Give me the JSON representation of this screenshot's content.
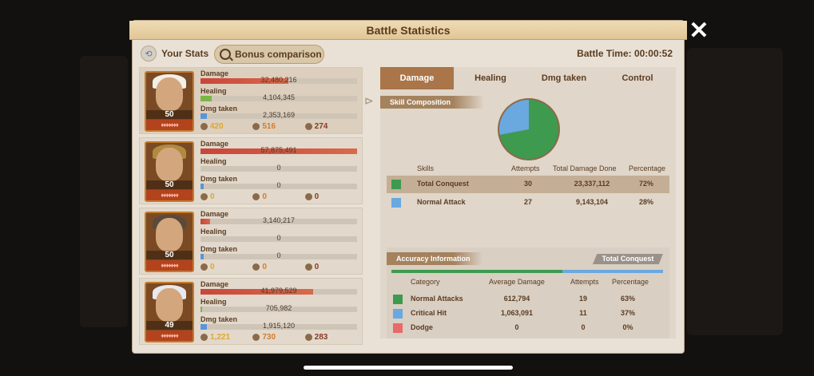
{
  "window": {
    "title": "Battle Statistics"
  },
  "header": {
    "your_stats": "Your Stats",
    "bonus_comparison": "Bonus comparison",
    "battle_time": "Battle Time: 00:00:52"
  },
  "stat_labels": {
    "damage": "Damage",
    "healing": "Healing",
    "dmg_taken": "Dmg taken"
  },
  "heroes": [
    {
      "level": "50",
      "damage": "32,480,216",
      "damage_pct": 0.56,
      "healing": "4,104,345",
      "healing_pct": 0.07,
      "dmg_taken": "2,353,169",
      "dmg_taken_pct": 0.04,
      "stat1": "420",
      "stat2": "516",
      "stat3": "274",
      "hat_color": "#f2efe8"
    },
    {
      "level": "50",
      "damage": "57,875,491",
      "damage_pct": 1.0,
      "healing": "0",
      "healing_pct": 0,
      "dmg_taken": "0",
      "dmg_taken_pct": 0.02,
      "stat1": "0",
      "stat2": "0",
      "stat3": "0",
      "hat_color": "#b08a40"
    },
    {
      "level": "50",
      "damage": "3,140,217",
      "damage_pct": 0.06,
      "healing": "0",
      "healing_pct": 0,
      "dmg_taken": "0",
      "dmg_taken_pct": 0.02,
      "stat1": "0",
      "stat2": "0",
      "stat3": "0",
      "hat_color": "#5a4a3a"
    },
    {
      "level": "49",
      "damage": "41,979,529",
      "damage_pct": 0.72,
      "healing": "705,982",
      "healing_pct": 0.01,
      "dmg_taken": "1,915,120",
      "dmg_taken_pct": 0.04,
      "stat1": "1,221",
      "stat2": "730",
      "stat3": "283",
      "hat_color": "#e8e8ee"
    }
  ],
  "tabs": [
    "Damage",
    "Healing",
    "Dmg taken",
    "Control"
  ],
  "skill_composition": {
    "label": "Skill Composition",
    "headers": {
      "skills": "Skills",
      "attempts": "Attempts",
      "total": "Total Damage Done",
      "pct": "Percentage"
    },
    "rows": [
      {
        "name": "Total Conquest",
        "attempts": "30",
        "total": "23,337,112",
        "pct": "72%",
        "color": "#3e9a4e"
      },
      {
        "name": "Normal Attack",
        "attempts": "27",
        "total": "9,143,104",
        "pct": "28%",
        "color": "#6aa8e0"
      }
    ]
  },
  "chart_data": {
    "type": "pie",
    "labels": [
      "Total Conquest",
      "Normal Attack"
    ],
    "values": [
      72,
      28
    ],
    "colors": [
      "#3e9a4e",
      "#6aa8e0"
    ]
  },
  "accuracy": {
    "label": "Accuracy Information",
    "tag": "Total Conquest",
    "headers": {
      "category": "Category",
      "avg": "Average Damage",
      "attempts": "Attempts",
      "pct": "Percentage"
    },
    "rows": [
      {
        "name": "Normal Attacks",
        "avg": "612,794",
        "attempts": "19",
        "pct": "63%",
        "color": "#3e9a4e"
      },
      {
        "name": "Critical Hit",
        "avg": "1,063,091",
        "attempts": "11",
        "pct": "37%",
        "color": "#6aa8e0"
      },
      {
        "name": "Dodge",
        "avg": "0",
        "attempts": "0",
        "pct": "0%",
        "color": "#e86a6a"
      }
    ]
  }
}
